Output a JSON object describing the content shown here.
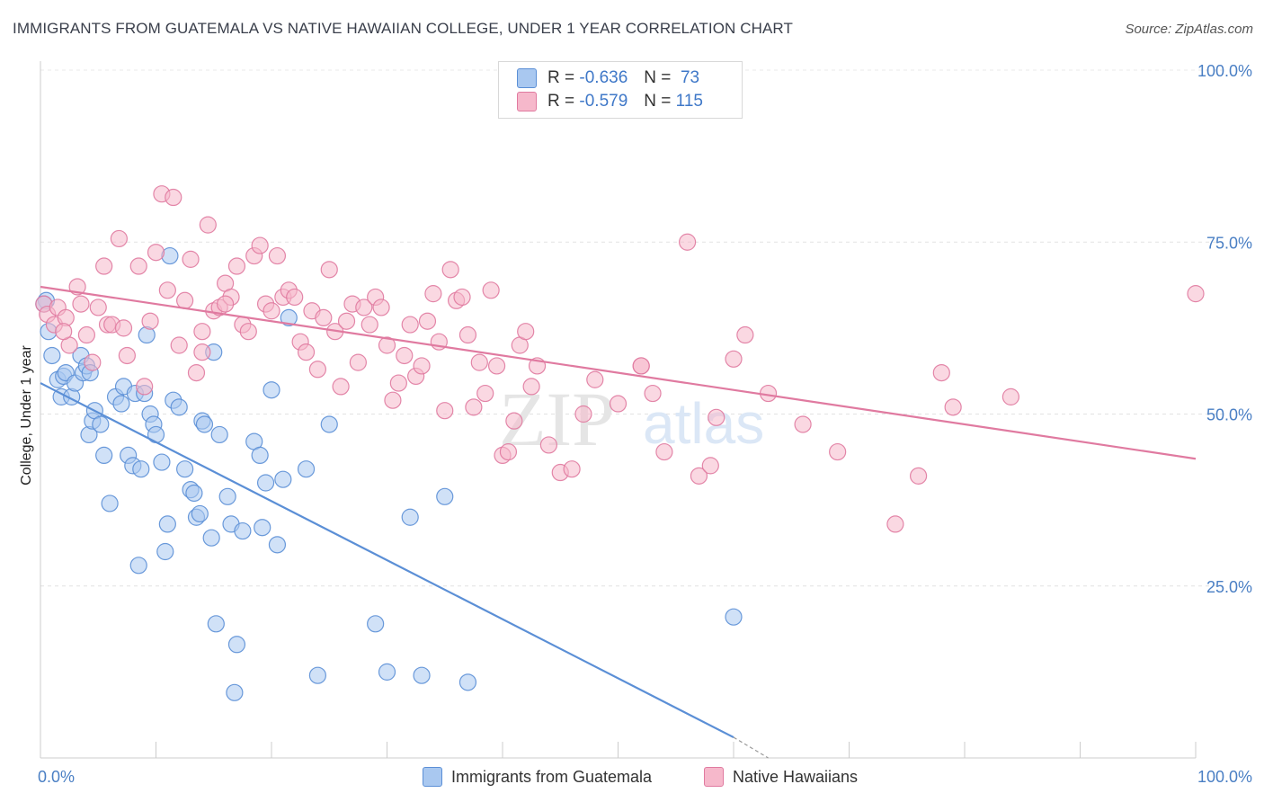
{
  "title": "IMMIGRANTS FROM GUATEMALA VS NATIVE HAWAIIAN COLLEGE, UNDER 1 YEAR CORRELATION CHART",
  "source": "Source: ZipAtlas.com",
  "watermark": {
    "zip": "ZIP",
    "atlas": "atlas"
  },
  "legend": {
    "rows": [
      {
        "r_label": "R =",
        "r_value": "-0.636",
        "n_label": "N =",
        "n_value": "73",
        "color": "#a9c8f0"
      },
      {
        "r_label": "R =",
        "r_value": "-0.579",
        "n_label": "N =",
        "n_value": "115",
        "color": "#f6b8cb"
      }
    ]
  },
  "chart_data": {
    "type": "scatter",
    "xlabel": "",
    "ylabel": "College, Under 1 year",
    "xlim": [
      0,
      100
    ],
    "ylim": [
      0,
      100
    ],
    "x_tick_labels": [
      "0.0%",
      "100.0%"
    ],
    "y_ticks": [
      25,
      50,
      75,
      100
    ],
    "y_tick_labels": [
      "25.0%",
      "50.0%",
      "75.0%",
      "100.0%"
    ],
    "grid": true,
    "series": [
      {
        "name": "Immigrants from Guatemala",
        "color": "#5b8fd6",
        "fill": "#a9c8f0",
        "trend": {
          "x": [
            0,
            60
          ],
          "y": [
            54.5,
            3
          ],
          "dash_to": [
            63,
            0
          ]
        },
        "points": [
          [
            0.5,
            66.5
          ],
          [
            0.7,
            62
          ],
          [
            1,
            58.5
          ],
          [
            1.5,
            55
          ],
          [
            1.8,
            52.5
          ],
          [
            2,
            55.5
          ],
          [
            2.2,
            56
          ],
          [
            2.7,
            52.5
          ],
          [
            3,
            54.5
          ],
          [
            3.5,
            58.5
          ],
          [
            3.7,
            56
          ],
          [
            4,
            57
          ],
          [
            4.3,
            56
          ],
          [
            4.2,
            47
          ],
          [
            4.5,
            49
          ],
          [
            4.7,
            50.5
          ],
          [
            5.2,
            48.5
          ],
          [
            5.5,
            44
          ],
          [
            6,
            37
          ],
          [
            6.5,
            52.5
          ],
          [
            7,
            51.5
          ],
          [
            7.2,
            54
          ],
          [
            7.6,
            44
          ],
          [
            8,
            42.5
          ],
          [
            8.2,
            53
          ],
          [
            8.5,
            28
          ],
          [
            8.7,
            42
          ],
          [
            9,
            53
          ],
          [
            9.2,
            61.5
          ],
          [
            9.5,
            50
          ],
          [
            9.8,
            48.5
          ],
          [
            10,
            47
          ],
          [
            10.5,
            43
          ],
          [
            10.8,
            30
          ],
          [
            11,
            34
          ],
          [
            11.2,
            73
          ],
          [
            11.5,
            52
          ],
          [
            12,
            51
          ],
          [
            12.5,
            42
          ],
          [
            13,
            39
          ],
          [
            13.3,
            38.5
          ],
          [
            13.5,
            35
          ],
          [
            13.8,
            35.5
          ],
          [
            14,
            49
          ],
          [
            14.2,
            48.5
          ],
          [
            14.8,
            32
          ],
          [
            15,
            59
          ],
          [
            15.2,
            19.5
          ],
          [
            15.5,
            47
          ],
          [
            16.2,
            38
          ],
          [
            16.5,
            34
          ],
          [
            16.8,
            9.5
          ],
          [
            17,
            16.5
          ],
          [
            17.5,
            33
          ],
          [
            18.5,
            46
          ],
          [
            19,
            44
          ],
          [
            19.2,
            33.5
          ],
          [
            19.5,
            40
          ],
          [
            20,
            53.5
          ],
          [
            20.5,
            31
          ],
          [
            21,
            40.5
          ],
          [
            21.5,
            64
          ],
          [
            23,
            42
          ],
          [
            24,
            12
          ],
          [
            25,
            48.5
          ],
          [
            29,
            19.5
          ],
          [
            30,
            12.5
          ],
          [
            32,
            35
          ],
          [
            33,
            12
          ],
          [
            35,
            38
          ],
          [
            37,
            11
          ],
          [
            60,
            20.5
          ],
          [
            0.3,
            66
          ]
        ]
      },
      {
        "name": "Native Hawaiians",
        "color": "#e07aa0",
        "fill": "#f6b8cb",
        "trend": {
          "x": [
            0,
            100
          ],
          "y": [
            68.5,
            43.5
          ]
        },
        "points": [
          [
            0.3,
            66
          ],
          [
            0.6,
            64.5
          ],
          [
            1.2,
            63
          ],
          [
            1.5,
            65.5
          ],
          [
            2.2,
            64
          ],
          [
            2.5,
            60
          ],
          [
            3.2,
            68.5
          ],
          [
            3.5,
            66
          ],
          [
            4,
            61.5
          ],
          [
            4.5,
            57.5
          ],
          [
            5,
            65.5
          ],
          [
            5.5,
            71.5
          ],
          [
            5.8,
            63
          ],
          [
            6.2,
            63
          ],
          [
            6.8,
            75.5
          ],
          [
            7.2,
            62.5
          ],
          [
            7.5,
            58.5
          ],
          [
            8.5,
            71.5
          ],
          [
            9,
            54
          ],
          [
            9.5,
            63.5
          ],
          [
            10,
            73.5
          ],
          [
            10.5,
            82
          ],
          [
            11,
            68
          ],
          [
            11.5,
            81.5
          ],
          [
            12,
            60
          ],
          [
            12.5,
            66.5
          ],
          [
            13,
            72.5
          ],
          [
            13.5,
            56
          ],
          [
            14,
            62
          ],
          [
            14.5,
            77.5
          ],
          [
            15,
            65
          ],
          [
            15.5,
            65.5
          ],
          [
            16,
            69
          ],
          [
            16.5,
            67
          ],
          [
            17,
            71.5
          ],
          [
            17.5,
            63
          ],
          [
            18,
            62
          ],
          [
            18.5,
            73
          ],
          [
            19,
            74.5
          ],
          [
            19.5,
            66
          ],
          [
            20,
            65
          ],
          [
            20.5,
            73
          ],
          [
            21,
            67
          ],
          [
            21.5,
            68
          ],
          [
            22,
            67
          ],
          [
            22.5,
            60.5
          ],
          [
            23,
            59
          ],
          [
            23.5,
            65
          ],
          [
            24,
            56.5
          ],
          [
            24.5,
            64
          ],
          [
            25,
            71
          ],
          [
            25.5,
            62
          ],
          [
            26,
            54
          ],
          [
            26.5,
            63.5
          ],
          [
            27,
            66
          ],
          [
            27.5,
            57.5
          ],
          [
            28,
            65.5
          ],
          [
            28.5,
            63
          ],
          [
            29,
            67
          ],
          [
            29.5,
            65.5
          ],
          [
            30,
            60
          ],
          [
            30.5,
            52
          ],
          [
            31,
            54.5
          ],
          [
            31.5,
            58.5
          ],
          [
            32,
            63
          ],
          [
            32.5,
            55.5
          ],
          [
            33,
            57
          ],
          [
            33.5,
            63.5
          ],
          [
            34,
            67.5
          ],
          [
            34.5,
            60.5
          ],
          [
            35,
            50.5
          ],
          [
            35.5,
            71
          ],
          [
            36,
            66.5
          ],
          [
            36.5,
            67
          ],
          [
            37,
            61.5
          ],
          [
            37.5,
            51
          ],
          [
            38,
            57.5
          ],
          [
            38.5,
            53
          ],
          [
            39,
            68
          ],
          [
            39.5,
            57
          ],
          [
            40,
            44
          ],
          [
            40.5,
            44.5
          ],
          [
            41,
            49
          ],
          [
            41.5,
            60
          ],
          [
            42,
            62
          ],
          [
            42.5,
            54
          ],
          [
            43,
            57
          ],
          [
            44,
            45.5
          ],
          [
            45,
            41.5
          ],
          [
            46,
            42
          ],
          [
            47,
            50
          ],
          [
            48,
            55
          ],
          [
            50,
            51.5
          ],
          [
            52,
            57
          ],
          [
            53,
            53
          ],
          [
            54,
            44.5
          ],
          [
            56,
            75
          ],
          [
            57,
            41
          ],
          [
            58,
            42.5
          ],
          [
            58.5,
            49.5
          ],
          [
            60,
            58
          ],
          [
            61,
            61.5
          ],
          [
            63,
            53
          ],
          [
            66,
            48.5
          ],
          [
            69,
            44.5
          ],
          [
            74,
            34
          ],
          [
            76,
            41
          ],
          [
            78,
            56
          ],
          [
            79,
            51
          ],
          [
            84,
            52.5
          ],
          [
            100,
            67.5
          ],
          [
            14,
            59
          ],
          [
            16,
            66
          ],
          [
            52,
            57
          ],
          [
            2,
            62
          ]
        ]
      }
    ]
  },
  "bottom_legend": [
    {
      "label": "Immigrants from Guatemala",
      "color": "#a9c8f0"
    },
    {
      "label": "Native Hawaiians",
      "color": "#f6b8cb"
    }
  ]
}
